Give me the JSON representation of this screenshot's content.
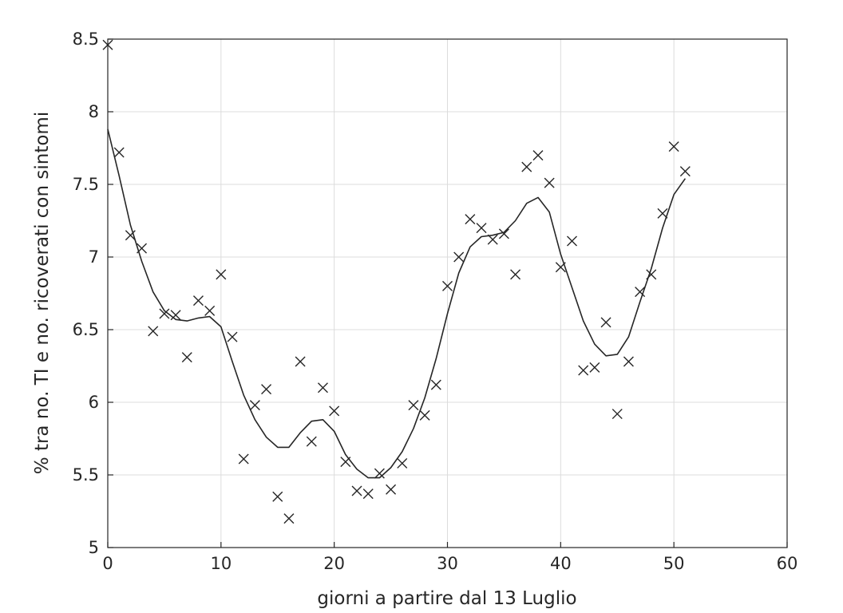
{
  "chart_data": {
    "type": "scatter",
    "title": "",
    "xlabel": "giorni a partire dal 13 Luglio",
    "ylabel": "% tra no. TI e no. ricoverati con sintomi",
    "xlim": [
      0,
      60
    ],
    "ylim": [
      5,
      8.5
    ],
    "xticks": [
      0,
      10,
      20,
      30,
      40,
      50,
      60
    ],
    "yticks": [
      5,
      5.5,
      6,
      6.5,
      7,
      7.5,
      8,
      8.5
    ],
    "grid": true,
    "legend": "none",
    "series": [
      {
        "marker": "x",
        "x": [
          0,
          1,
          2,
          3,
          4,
          5,
          6,
          7,
          8,
          9,
          10,
          11,
          12,
          13,
          14,
          15,
          16,
          17,
          18,
          19,
          20,
          21,
          22,
          23,
          24,
          25,
          26,
          27,
          28,
          29,
          30,
          31,
          32,
          33,
          34,
          35,
          36,
          37,
          38,
          39,
          40,
          41,
          42,
          43,
          44,
          45,
          46,
          47,
          48,
          49,
          50,
          51
        ],
        "y": [
          8.46,
          7.72,
          7.15,
          7.06,
          6.49,
          6.61,
          6.6,
          6.31,
          6.7,
          6.63,
          6.88,
          6.45,
          5.61,
          5.98,
          6.09,
          5.35,
          5.2,
          6.28,
          5.73,
          6.1,
          5.94,
          5.59,
          5.39,
          5.37,
          5.51,
          5.4,
          5.58,
          5.98,
          5.91,
          6.12,
          6.8,
          7.0,
          7.26,
          7.2,
          7.12,
          7.16,
          6.88,
          7.62,
          7.7,
          7.51,
          6.93,
          7.11,
          6.22,
          6.24,
          6.55,
          5.92,
          6.28,
          6.76,
          6.88,
          7.3,
          7.76,
          7.59
        ]
      },
      {
        "marker": "line",
        "x": [
          0,
          1,
          2,
          3,
          4,
          5,
          6,
          7,
          8,
          9,
          10,
          11,
          12,
          13,
          14,
          15,
          16,
          17,
          18,
          19,
          20,
          21,
          22,
          23,
          24,
          25,
          26,
          27,
          28,
          29,
          30,
          31,
          32,
          33,
          34,
          35,
          36,
          37,
          38,
          39,
          40,
          41,
          42,
          43,
          44,
          45,
          46,
          47,
          48,
          49,
          50,
          51
        ],
        "y": [
          7.88,
          7.56,
          7.22,
          6.97,
          6.76,
          6.63,
          6.57,
          6.56,
          6.58,
          6.59,
          6.52,
          6.28,
          6.05,
          5.88,
          5.76,
          5.69,
          5.69,
          5.79,
          5.87,
          5.88,
          5.8,
          5.64,
          5.54,
          5.48,
          5.48,
          5.55,
          5.66,
          5.82,
          6.03,
          6.3,
          6.61,
          6.89,
          7.07,
          7.14,
          7.15,
          7.17,
          7.25,
          7.37,
          7.41,
          7.31,
          7.02,
          6.79,
          6.56,
          6.4,
          6.32,
          6.33,
          6.45,
          6.69,
          6.92,
          7.2,
          7.43,
          7.54
        ]
      }
    ]
  }
}
